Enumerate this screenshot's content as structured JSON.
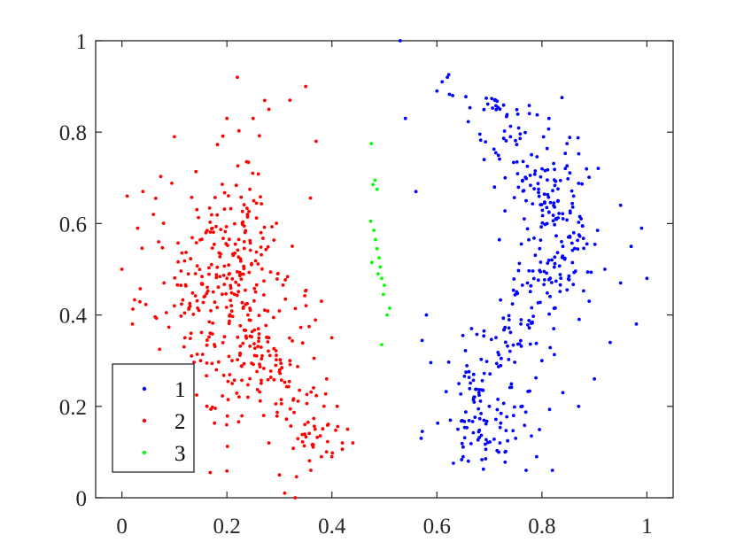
{
  "chart_data": {
    "type": "scatter",
    "title": "",
    "xlabel": "",
    "ylabel": "",
    "xlim": [
      -0.05,
      1.05
    ],
    "ylim": [
      0,
      1
    ],
    "xticks": [
      0,
      0.2,
      0.4,
      0.6,
      0.8,
      1
    ],
    "yticks": [
      0,
      0.2,
      0.4,
      0.6,
      0.8,
      1
    ],
    "xtick_labels": [
      "0",
      "0.2",
      "0.4",
      "0.6",
      "0.8",
      "1"
    ],
    "ytick_labels": [
      "0",
      "0.2",
      "0.4",
      "0.6",
      "0.8",
      "1"
    ],
    "grid": false,
    "legend_position": "bottom-left",
    "series": [
      {
        "name": "1",
        "color": "#0000ff",
        "cluster": {
          "approx_count": 420,
          "x_range": [
            0.55,
            1.0
          ],
          "y_range": [
            0.06,
            1.0
          ],
          "shape": "crescent",
          "seed": 11
        },
        "points": [
          [
            0.53,
            1.0
          ],
          [
            0.54,
            0.83
          ],
          [
            0.56,
            0.67
          ],
          [
            0.57,
            0.13
          ],
          [
            0.58,
            0.4
          ],
          [
            0.6,
            0.89
          ],
          [
            0.61,
            0.91
          ],
          [
            0.62,
            0.92
          ],
          [
            0.63,
            0.88
          ],
          [
            0.64,
            0.15
          ],
          [
            0.65,
            0.09
          ],
          [
            0.66,
            0.08
          ],
          [
            0.67,
            0.27
          ],
          [
            0.68,
            0.23
          ],
          [
            0.7,
            0.2
          ],
          [
            0.72,
            0.12
          ],
          [
            0.73,
            0.1
          ],
          [
            0.75,
            0.13
          ],
          [
            0.77,
            0.06
          ],
          [
            0.79,
            0.09
          ],
          [
            0.82,
            0.06
          ],
          [
            0.87,
            0.2
          ],
          [
            0.9,
            0.26
          ],
          [
            0.93,
            0.34
          ],
          [
            0.95,
            0.47
          ],
          [
            0.97,
            0.55
          ],
          [
            0.99,
            0.59
          ],
          [
            1.0,
            0.48
          ],
          [
            0.98,
            0.38
          ],
          [
            0.95,
            0.64
          ],
          [
            0.92,
            0.5
          ],
          [
            0.89,
            0.43
          ],
          [
            0.84,
            0.23
          ],
          [
            0.8,
            0.3
          ],
          [
            0.76,
            0.38
          ],
          [
            0.74,
            0.79
          ],
          [
            0.71,
            0.87
          ],
          [
            0.69,
            0.74
          ],
          [
            0.73,
            0.7
          ],
          [
            0.77,
            0.65
          ],
          [
            0.81,
            0.6
          ],
          [
            0.84,
            0.55
          ]
        ]
      },
      {
        "name": "2",
        "color": "#ff0000",
        "cluster": {
          "approx_count": 460,
          "x_range": [
            0.0,
            0.44
          ],
          "y_range": [
            0.0,
            0.92
          ],
          "shape": "blob",
          "seed": 23
        },
        "points": [
          [
            0.0,
            0.5
          ],
          [
            0.01,
            0.66
          ],
          [
            0.02,
            0.38
          ],
          [
            0.03,
            0.59
          ],
          [
            0.04,
            0.67
          ],
          [
            0.06,
            0.62
          ],
          [
            0.07,
            0.56
          ],
          [
            0.08,
            0.47
          ],
          [
            0.1,
            0.79
          ],
          [
            0.2,
            0.83
          ],
          [
            0.22,
            0.92
          ],
          [
            0.25,
            0.83
          ],
          [
            0.28,
            0.85
          ],
          [
            0.32,
            0.87
          ],
          [
            0.35,
            0.9
          ],
          [
            0.37,
            0.78
          ],
          [
            0.38,
            0.43
          ],
          [
            0.39,
            0.26
          ],
          [
            0.4,
            0.35
          ],
          [
            0.41,
            0.2
          ],
          [
            0.42,
            0.12
          ],
          [
            0.43,
            0.15
          ],
          [
            0.44,
            0.12
          ],
          [
            0.4,
            0.09
          ],
          [
            0.38,
            0.09
          ],
          [
            0.36,
            0.06
          ],
          [
            0.33,
            0.0
          ],
          [
            0.31,
            0.01
          ],
          [
            0.3,
            0.05
          ],
          [
            0.28,
            0.12
          ],
          [
            0.27,
            0.18
          ],
          [
            0.24,
            0.22
          ],
          [
            0.21,
            0.25
          ],
          [
            0.18,
            0.28
          ],
          [
            0.15,
            0.3
          ],
          [
            0.12,
            0.35
          ],
          [
            0.1,
            0.42
          ],
          [
            0.16,
            0.58
          ],
          [
            0.2,
            0.48
          ],
          [
            0.24,
            0.4
          ],
          [
            0.28,
            0.35
          ],
          [
            0.32,
            0.3
          ]
        ]
      },
      {
        "name": "3",
        "color": "#00ff00",
        "points": [
          [
            0.475,
            0.775
          ],
          [
            0.478,
            0.685
          ],
          [
            0.482,
            0.695
          ],
          [
            0.486,
            0.675
          ],
          [
            0.474,
            0.605
          ],
          [
            0.48,
            0.585
          ],
          [
            0.483,
            0.565
          ],
          [
            0.486,
            0.545
          ],
          [
            0.49,
            0.525
          ],
          [
            0.476,
            0.515
          ],
          [
            0.492,
            0.505
          ],
          [
            0.488,
            0.49
          ],
          [
            0.495,
            0.48
          ],
          [
            0.5,
            0.465
          ],
          [
            0.498,
            0.445
          ],
          [
            0.51,
            0.415
          ],
          [
            0.505,
            0.4
          ],
          [
            0.495,
            0.335
          ]
        ]
      }
    ]
  }
}
